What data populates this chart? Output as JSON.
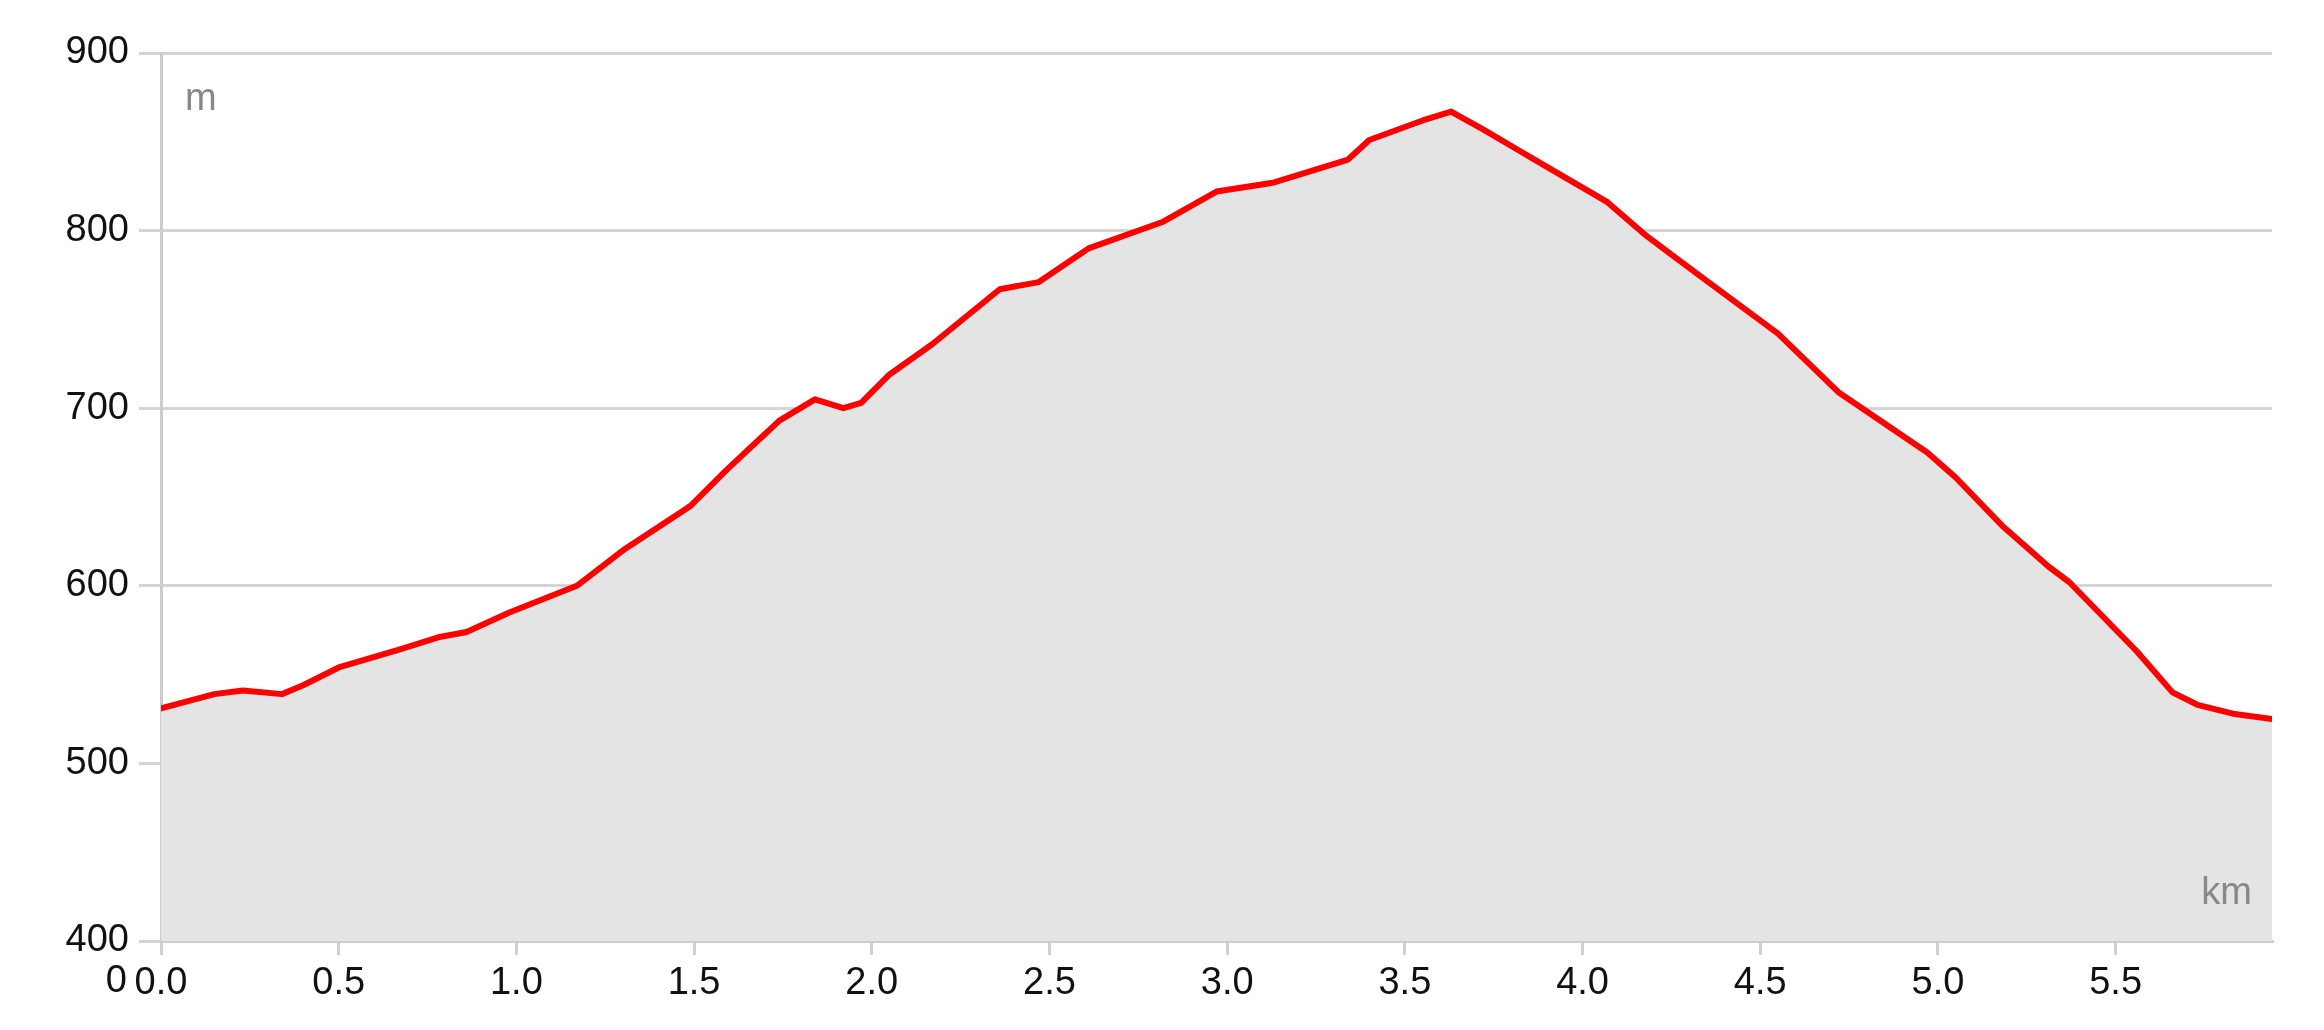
{
  "chart_data": {
    "type": "area",
    "xlabel": "km",
    "ylabel": "m",
    "x": [
      0,
      0.15,
      0.23,
      0.34,
      0.4,
      0.5,
      0.67,
      0.78,
      0.86,
      0.98,
      1.17,
      1.3,
      1.49,
      1.59,
      1.74,
      1.84,
      1.92,
      1.97,
      2.05,
      2.17,
      2.36,
      2.47,
      2.61,
      2.82,
      2.97,
      3.13,
      3.34,
      3.4,
      3.55,
      3.63,
      3.72,
      3.89,
      4.07,
      4.18,
      4.32,
      4.55,
      4.72,
      4.97,
      5.05,
      5.18,
      5.31,
      5.37,
      5.56,
      5.66,
      5.73,
      5.83,
      5.94
    ],
    "series": [
      {
        "color": "#ff0000",
        "values": [
          531,
          539,
          541,
          539,
          544,
          554,
          564,
          571,
          574,
          585,
          600,
          620,
          645,
          665,
          693,
          705,
          700,
          703,
          719,
          736,
          767,
          771,
          790,
          805,
          822,
          827,
          840,
          851,
          862,
          867,
          857,
          837,
          816,
          797,
          776,
          742,
          709,
          675,
          661,
          634,
          611,
          602,
          563,
          540,
          533,
          528,
          525
        ]
      }
    ],
    "xlim": [
      0,
      5.94
    ],
    "ylim": [
      400,
      900
    ],
    "xticks": [
      {
        "value": 0,
        "label": "0.0"
      },
      {
        "value": 0.5,
        "label": "0.5"
      },
      {
        "value": 1,
        "label": "1.0"
      },
      {
        "value": 1.5,
        "label": "1.5"
      },
      {
        "value": 2,
        "label": "2.0"
      },
      {
        "value": 2.5,
        "label": "2.5"
      },
      {
        "value": 3,
        "label": "3.0"
      },
      {
        "value": 3.5,
        "label": "3.5"
      },
      {
        "value": 4,
        "label": "4.0"
      },
      {
        "value": 4.5,
        "label": "4.5"
      },
      {
        "value": 5,
        "label": "5.0"
      },
      {
        "value": 5.5,
        "label": "5.5"
      }
    ],
    "yticks": [
      400,
      500,
      600,
      700,
      800,
      900
    ],
    "grid": "y",
    "annotations": [
      "0"
    ]
  }
}
